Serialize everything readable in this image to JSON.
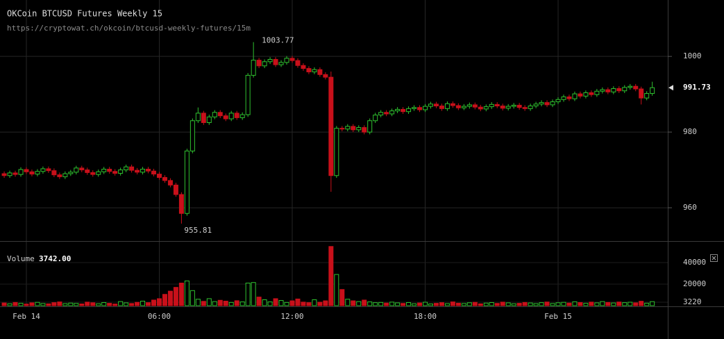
{
  "chart_data": [
    {
      "type": "candlestick",
      "title": "OKCoin BTCUSD Futures Weekly 15",
      "subtitle": "https://cryptowat.ch/okcoin/btcusd-weekly-futures/15m",
      "up_color": "#2fc22f",
      "down_color": "#c8101a",
      "xlim": [
        -1.19,
        28.95
      ],
      "ylim": [
        951.2,
        1014.9
      ],
      "xticks": [
        {
          "value": 0,
          "label": "Feb 14"
        },
        {
          "value": 6,
          "label": "06:00"
        },
        {
          "value": 12,
          "label": "12:00"
        },
        {
          "value": 18,
          "label": "18:00"
        },
        {
          "value": 24,
          "label": "Feb 15"
        }
      ],
      "yticks": [
        960,
        980,
        1000
      ],
      "grid": true,
      "last_price": 991.73,
      "annotations": [
        {
          "x": 10.25,
          "value": 1003.77
        },
        {
          "x": 7,
          "value": 955.81
        }
      ],
      "x": [
        -1,
        -0.75,
        -0.5,
        -0.25,
        0,
        0.25,
        0.5,
        0.75,
        1,
        1.25,
        1.5,
        1.75,
        2,
        2.25,
        2.5,
        2.75,
        3,
        3.25,
        3.5,
        3.75,
        4,
        4.25,
        4.5,
        4.75,
        5,
        5.25,
        5.5,
        5.75,
        6,
        6.25,
        6.5,
        6.75,
        7,
        7.25,
        7.5,
        7.75,
        8,
        8.25,
        8.5,
        8.75,
        9,
        9.25,
        9.5,
        9.75,
        10,
        10.25,
        10.5,
        10.75,
        11,
        11.25,
        11.5,
        11.75,
        12,
        12.25,
        12.5,
        12.75,
        13,
        13.25,
        13.5,
        13.75,
        14,
        14.25,
        14.5,
        14.75,
        15,
        15.25,
        15.5,
        15.75,
        16,
        16.25,
        16.5,
        16.75,
        17,
        17.25,
        17.5,
        17.75,
        18,
        18.25,
        18.5,
        18.75,
        19,
        19.25,
        19.5,
        19.75,
        20,
        20.25,
        20.5,
        20.75,
        21,
        21.25,
        21.5,
        21.75,
        22,
        22.25,
        22.5,
        22.75,
        23,
        23.25,
        23.5,
        23.75,
        24,
        24.25,
        24.5,
        24.75,
        25,
        25.25,
        25.5,
        25.75,
        26,
        26.25,
        26.5,
        26.75,
        27,
        27.25,
        27.5,
        27.75,
        28,
        28.25
      ],
      "candles": [
        [
          969.0,
          969.6,
          967.9,
          968.5
        ],
        [
          968.5,
          969.8,
          967.9,
          969.2
        ],
        [
          969.2,
          969.8,
          968.2,
          968.8
        ],
        [
          968.8,
          970.7,
          968.2,
          970.1
        ],
        [
          970.1,
          970.7,
          968.9,
          969.5
        ],
        [
          969.5,
          970.1,
          968.3,
          968.9
        ],
        [
          968.9,
          970.2,
          968.3,
          969.6
        ],
        [
          969.6,
          970.9,
          969.0,
          970.3
        ],
        [
          970.3,
          970.9,
          969.2,
          969.8
        ],
        [
          969.8,
          970.4,
          968.1,
          968.7
        ],
        [
          968.7,
          969.3,
          967.6,
          968.2
        ],
        [
          968.2,
          969.6,
          967.6,
          969.0
        ],
        [
          969.0,
          970.0,
          968.4,
          969.4
        ],
        [
          969.4,
          971.1,
          968.8,
          970.5
        ],
        [
          970.5,
          971.1,
          969.4,
          970.0
        ],
        [
          970.0,
          970.6,
          968.7,
          969.3
        ],
        [
          969.3,
          969.9,
          968.2,
          968.8
        ],
        [
          968.8,
          970.1,
          968.2,
          969.5
        ],
        [
          969.5,
          970.8,
          968.9,
          970.2
        ],
        [
          970.2,
          970.8,
          969.0,
          969.6
        ],
        [
          969.6,
          970.2,
          968.5,
          969.1
        ],
        [
          969.1,
          970.6,
          968.5,
          970.0
        ],
        [
          970.0,
          971.4,
          969.4,
          970.8
        ],
        [
          970.8,
          971.4,
          969.3,
          969.9
        ],
        [
          969.9,
          970.5,
          968.8,
          969.4
        ],
        [
          969.4,
          970.8,
          968.8,
          970.2
        ],
        [
          970.2,
          970.8,
          969.1,
          969.7
        ],
        [
          969.7,
          970.3,
          968.3,
          968.9
        ],
        [
          968.9,
          969.5,
          967.4,
          968.0
        ],
        [
          968.0,
          968.6,
          966.6,
          967.2
        ],
        [
          967.2,
          967.8,
          965.4,
          966.0
        ],
        [
          966.0,
          966.6,
          962.9,
          963.5
        ],
        [
          963.5,
          964.1,
          955.81,
          958.5
        ],
        [
          958.5,
          975.6,
          957.9,
          975.0
        ],
        [
          975.0,
          983.6,
          974.4,
          983.0
        ],
        [
          983.0,
          986.5,
          982.4,
          985.0
        ],
        [
          985.0,
          985.6,
          981.9,
          982.5
        ],
        [
          982.5,
          984.6,
          981.9,
          984.0
        ],
        [
          984.0,
          985.8,
          983.4,
          985.2
        ],
        [
          985.2,
          985.8,
          983.7,
          984.3
        ],
        [
          984.3,
          984.9,
          982.9,
          983.5
        ],
        [
          983.5,
          985.6,
          982.9,
          985.0
        ],
        [
          985.0,
          985.6,
          983.2,
          983.8
        ],
        [
          983.8,
          985.2,
          983.2,
          984.6
        ],
        [
          984.6,
          995.6,
          984.0,
          995.0
        ],
        [
          995.0,
          1003.77,
          994.4,
          999.0
        ],
        [
          999.0,
          999.6,
          996.9,
          997.5
        ],
        [
          997.5,
          999.2,
          996.9,
          998.6
        ],
        [
          998.6,
          999.8,
          998.0,
          999.2
        ],
        [
          999.2,
          999.8,
          997.2,
          997.8
        ],
        [
          997.8,
          999.0,
          997.2,
          998.4
        ],
        [
          998.4,
          1000.1,
          997.8,
          999.5
        ],
        [
          999.5,
          1000.1,
          998.3,
          998.9
        ],
        [
          998.9,
          999.5,
          997.0,
          997.6
        ],
        [
          997.6,
          998.2,
          996.2,
          996.8
        ],
        [
          996.8,
          997.4,
          995.3,
          995.9
        ],
        [
          995.9,
          997.1,
          995.3,
          996.5
        ],
        [
          996.5,
          997.1,
          994.6,
          995.2
        ],
        [
          995.2,
          995.8,
          993.9,
          994.5
        ],
        [
          994.5,
          996.0,
          964.2,
          968.5
        ],
        [
          968.5,
          981.6,
          967.9,
          981.0
        ],
        [
          981.0,
          981.6,
          980.2,
          980.8
        ],
        [
          980.8,
          982.1,
          980.2,
          981.5
        ],
        [
          981.5,
          982.1,
          980.0,
          980.6
        ],
        [
          980.6,
          981.8,
          980.0,
          981.2
        ],
        [
          981.2,
          981.8,
          979.4,
          980.0
        ],
        [
          980.0,
          983.6,
          979.4,
          983.0
        ],
        [
          983.0,
          985.1,
          982.4,
          984.5
        ],
        [
          984.5,
          985.8,
          983.9,
          985.2
        ],
        [
          985.2,
          985.8,
          984.2,
          984.8
        ],
        [
          984.8,
          986.2,
          984.2,
          985.6
        ],
        [
          985.6,
          986.6,
          985.0,
          986.0
        ],
        [
          986.0,
          986.6,
          984.8,
          985.4
        ],
        [
          985.4,
          986.8,
          984.8,
          986.2
        ],
        [
          986.2,
          987.1,
          985.6,
          986.5
        ],
        [
          986.5,
          987.1,
          985.3,
          985.9
        ],
        [
          985.9,
          987.4,
          985.3,
          986.8
        ],
        [
          986.8,
          988.0,
          986.2,
          987.4
        ],
        [
          987.4,
          988.0,
          986.3,
          986.9
        ],
        [
          986.9,
          987.5,
          985.6,
          986.2
        ],
        [
          986.2,
          988.1,
          985.6,
          987.5
        ],
        [
          987.5,
          988.1,
          986.4,
          987.0
        ],
        [
          987.0,
          987.6,
          985.8,
          986.4
        ],
        [
          986.4,
          987.4,
          985.8,
          986.8
        ],
        [
          986.8,
          987.8,
          986.2,
          987.2
        ],
        [
          987.2,
          987.8,
          986.0,
          986.6
        ],
        [
          986.6,
          987.2,
          985.5,
          986.1
        ],
        [
          986.1,
          987.3,
          985.5,
          986.7
        ],
        [
          986.7,
          987.9,
          986.1,
          987.3
        ],
        [
          987.3,
          987.9,
          986.3,
          986.9
        ],
        [
          986.9,
          987.5,
          985.7,
          986.3
        ],
        [
          986.3,
          987.4,
          985.7,
          986.8
        ],
        [
          986.8,
          987.7,
          986.2,
          987.1
        ],
        [
          987.1,
          987.7,
          985.9,
          986.5
        ],
        [
          986.5,
          987.1,
          985.6,
          986.2
        ],
        [
          986.2,
          987.5,
          985.6,
          986.9
        ],
        [
          986.9,
          988.0,
          986.3,
          987.4
        ],
        [
          987.4,
          988.4,
          986.8,
          987.8
        ],
        [
          987.8,
          988.4,
          986.6,
          987.2
        ],
        [
          987.2,
          988.6,
          986.6,
          988.0
        ],
        [
          988.0,
          989.2,
          987.4,
          988.6
        ],
        [
          988.6,
          989.9,
          988.0,
          989.3
        ],
        [
          989.3,
          989.9,
          988.2,
          988.8
        ],
        [
          988.8,
          990.7,
          988.2,
          990.1
        ],
        [
          990.1,
          990.7,
          988.9,
          989.5
        ],
        [
          989.5,
          991.0,
          988.9,
          990.4
        ],
        [
          990.4,
          991.0,
          989.3,
          989.9
        ],
        [
          989.9,
          991.4,
          989.3,
          990.8
        ],
        [
          990.8,
          991.8,
          990.2,
          991.2
        ],
        [
          991.2,
          991.8,
          990.0,
          990.6
        ],
        [
          990.6,
          992.1,
          990.0,
          991.5
        ],
        [
          991.5,
          992.1,
          990.3,
          990.9
        ],
        [
          990.9,
          992.4,
          990.3,
          991.8
        ],
        [
          991.8,
          992.7,
          991.2,
          992.1
        ],
        [
          992.1,
          992.7,
          990.8,
          991.4
        ],
        [
          991.4,
          992.0,
          987.3,
          989.0
        ],
        [
          989.0,
          990.8,
          988.4,
          990.2
        ],
        [
          990.2,
          993.3,
          989.6,
          991.73
        ]
      ]
    },
    {
      "type": "bar",
      "title": "Volume",
      "last": {
        "value": 3742,
        "label": "3742.00"
      },
      "xlim": [
        -1.19,
        28.95
      ],
      "ylim": [
        0,
        59400
      ],
      "yticks": [
        3220,
        20000,
        40000
      ],
      "x": [
        -1,
        -0.75,
        -0.5,
        -0.25,
        0,
        0.25,
        0.5,
        0.75,
        1,
        1.25,
        1.5,
        1.75,
        2,
        2.25,
        2.5,
        2.75,
        3,
        3.25,
        3.5,
        3.75,
        4,
        4.25,
        4.5,
        4.75,
        5,
        5.25,
        5.5,
        5.75,
        6,
        6.25,
        6.5,
        6.75,
        7,
        7.25,
        7.5,
        7.75,
        8,
        8.25,
        8.5,
        8.75,
        9,
        9.25,
        9.5,
        9.75,
        10,
        10.25,
        10.5,
        10.75,
        11,
        11.25,
        11.5,
        11.75,
        12,
        12.25,
        12.5,
        12.75,
        13,
        13.25,
        13.5,
        13.75,
        14,
        14.25,
        14.5,
        14.75,
        15,
        15.25,
        15.5,
        15.75,
        16,
        16.25,
        16.5,
        16.75,
        17,
        17.25,
        17.5,
        17.75,
        18,
        18.25,
        18.5,
        18.75,
        19,
        19.25,
        19.5,
        19.75,
        20,
        20.25,
        20.5,
        20.75,
        21,
        21.25,
        21.5,
        21.75,
        22,
        22.25,
        22.5,
        22.75,
        23,
        23.25,
        23.5,
        23.75,
        24,
        24.25,
        24.5,
        24.75,
        25,
        25.25,
        25.5,
        25.75,
        26,
        26.25,
        26.5,
        26.75,
        27,
        27.25,
        27.5,
        27.75,
        28,
        28.25
      ],
      "values": [
        2500,
        1800,
        3000,
        2200,
        1500,
        2600,
        3100,
        2000,
        1700,
        2800,
        3500,
        1900,
        2400,
        2100,
        1600,
        3300,
        2700,
        1800,
        2900,
        2200,
        1500,
        3800,
        2600,
        2000,
        3100,
        4200,
        2800,
        5200,
        6500,
        10500,
        13500,
        17000,
        21000,
        23000,
        14000,
        6000,
        4000,
        6500,
        3800,
        5000,
        4200,
        3000,
        4600,
        3500,
        21000,
        21500,
        8000,
        5500,
        3500,
        6500,
        4800,
        3000,
        4500,
        6200,
        3300,
        2800,
        5500,
        3200,
        4500,
        55000,
        29000,
        15000,
        6000,
        4500,
        3800,
        5200,
        3500,
        2800,
        3000,
        2400,
        3300,
        2600,
        2100,
        2900,
        1800,
        2500,
        3200,
        1600,
        2200,
        2800,
        1900,
        3500,
        2300,
        2000,
        2700,
        3100,
        1700,
        2400,
        2900,
        2100,
        3300,
        2600,
        1800,
        2200,
        3000,
        2500,
        1900,
        2800,
        3400,
        2000,
        2700,
        3100,
        2400,
        3600,
        2900,
        2200,
        3300,
        2600,
        3800,
        3000,
        2500,
        3400,
        2800,
        3200,
        2600,
        4100,
        2300,
        3742
      ]
    }
  ]
}
